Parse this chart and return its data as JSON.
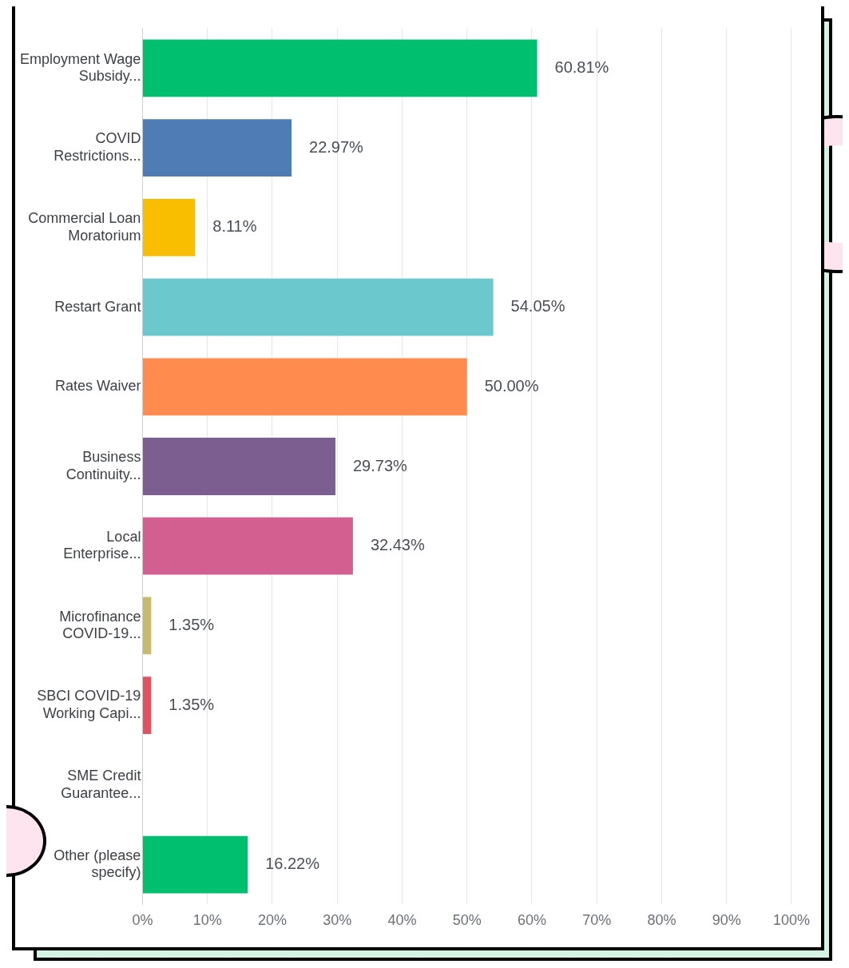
{
  "chart_data": {
    "type": "bar",
    "orientation": "horizontal",
    "categories": [
      "Employment Wage Subsidy...",
      "COVID Restrictions...",
      "Commercial Loan Moratorium",
      "Restart Grant",
      "Rates Waiver",
      "Business Continuity...",
      "Local Enterprise...",
      "Microfinance COVID-19...",
      "SBCI COVID-19 Working Capi...",
      "SME Credit Guarantee...",
      "Other (please specify)"
    ],
    "values": [
      60.81,
      22.97,
      8.11,
      54.05,
      50.0,
      29.73,
      32.43,
      1.35,
      1.35,
      0,
      16.22
    ],
    "colors": [
      "#00bf6f",
      "#507cb6",
      "#f9be00",
      "#6bc8cd",
      "#ff8b4f",
      "#7d5e90",
      "#d25f90",
      "#c9b96f",
      "#e05260",
      "#00bf6f",
      "#00bf6f"
    ],
    "value_labels": [
      "60.81%",
      "22.97%",
      "8.11%",
      "54.05%",
      "50.00%",
      "29.73%",
      "32.43%",
      "1.35%",
      "1.35%",
      null,
      "16.22%"
    ],
    "xlim": [
      0,
      100
    ],
    "xticks": [
      {
        "value": 0,
        "label": "0%"
      },
      {
        "value": 10,
        "label": "10%"
      },
      {
        "value": 20,
        "label": "20%"
      },
      {
        "value": 30,
        "label": "30%"
      },
      {
        "value": 40,
        "label": "40%"
      },
      {
        "value": 50,
        "label": "50%"
      },
      {
        "value": 60,
        "label": "60%"
      },
      {
        "value": 70,
        "label": "70%"
      },
      {
        "value": 80,
        "label": "80%"
      },
      {
        "value": 90,
        "label": "90%"
      },
      {
        "value": 100,
        "label": "100%"
      }
    ],
    "grid": "x",
    "legend": false
  }
}
